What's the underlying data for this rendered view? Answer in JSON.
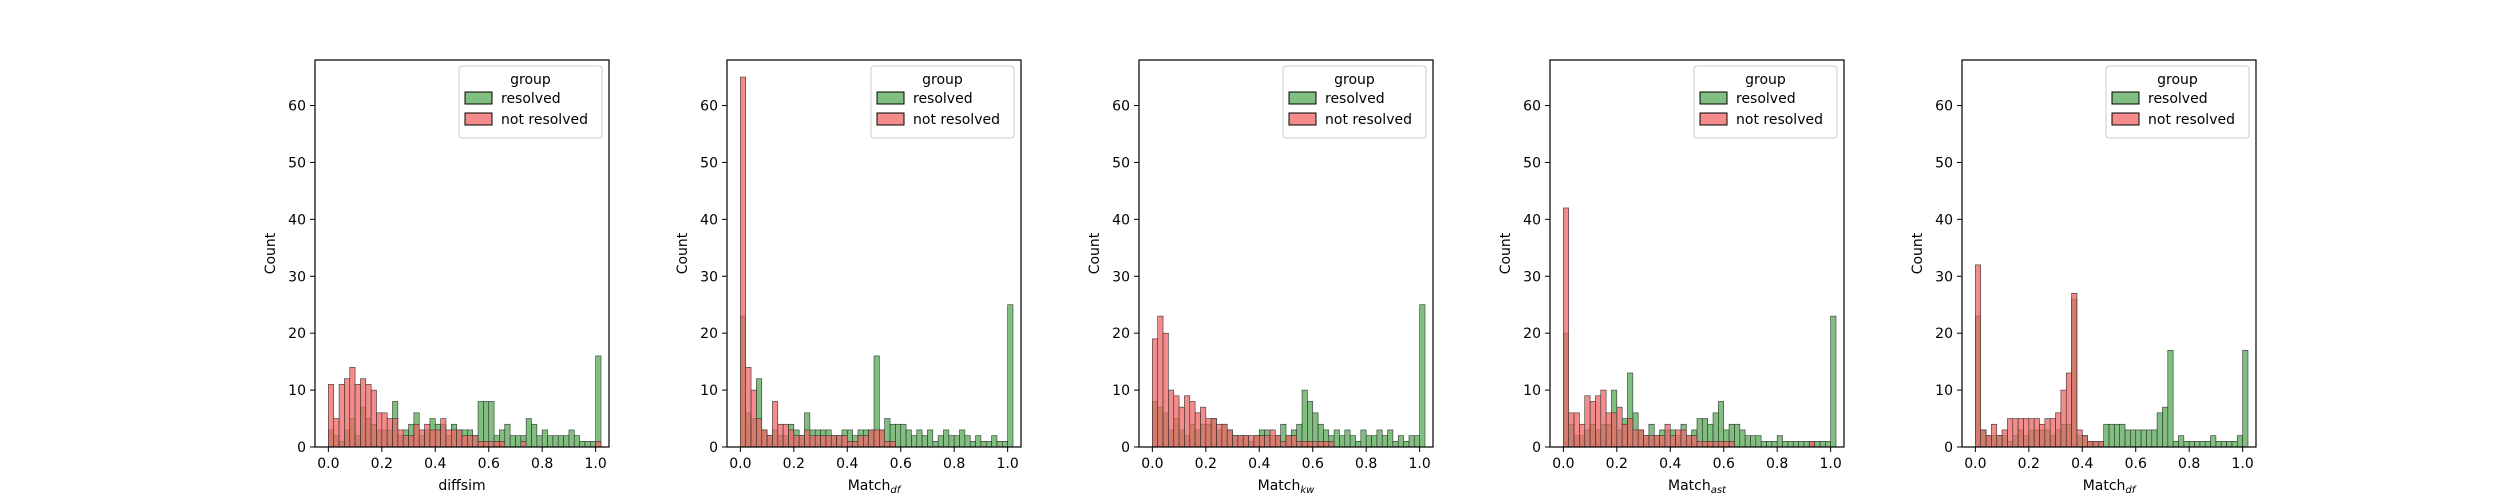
{
  "colors": {
    "resolved": "#55AA55",
    "not_resolved": "#F06666",
    "overlap": "#6B5A2C"
  },
  "chart_data": [
    {
      "type": "bar",
      "xlabel_main": "diffsim",
      "xlabel_sub": "",
      "ylabel": "Count",
      "xlim": [
        -0.05,
        1.05
      ],
      "ylim": [
        0,
        68
      ],
      "xticks": [
        "0.0",
        "0.2",
        "0.4",
        "0.6",
        "0.8",
        "1.0"
      ],
      "yticks": [
        "0",
        "10",
        "20",
        "30",
        "40",
        "50",
        "60"
      ],
      "legend": {
        "title": "group",
        "placement": "top-right",
        "entries": [
          "resolved",
          "not resolved"
        ]
      },
      "bin_start": 0.0,
      "bin_width": 0.02,
      "series": [
        {
          "name": "resolved",
          "values": [
            3,
            2,
            1,
            3,
            5,
            2,
            7,
            5,
            4,
            3,
            3,
            3,
            8,
            2,
            3,
            4,
            6,
            2,
            3,
            5,
            4,
            4,
            2,
            4,
            3,
            3,
            3,
            2,
            8,
            8,
            8,
            2,
            3,
            4,
            2,
            2,
            2,
            5,
            4,
            2,
            3,
            2,
            2,
            2,
            2,
            3,
            2,
            1,
            1,
            1,
            16
          ]
        },
        {
          "name": "not resolved",
          "values": [
            11,
            5,
            11,
            12,
            14,
            11,
            12,
            11,
            10,
            6,
            6,
            5,
            5,
            3,
            2,
            2,
            4,
            3,
            4,
            3,
            3,
            5,
            3,
            3,
            3,
            2,
            2,
            2,
            1,
            1,
            1,
            1,
            1,
            0,
            0,
            0,
            1,
            0,
            0,
            0,
            0,
            0,
            0,
            0,
            0,
            0,
            0,
            0,
            0,
            0,
            1
          ]
        }
      ]
    },
    {
      "type": "bar",
      "xlabel_main": "Match",
      "xlabel_sub": "df",
      "ylabel": "Count",
      "xlim": [
        -0.05,
        1.05
      ],
      "ylim": [
        0,
        68
      ],
      "xticks": [
        "0.0",
        "0.2",
        "0.4",
        "0.6",
        "0.8",
        "1.0"
      ],
      "yticks": [
        "0",
        "10",
        "20",
        "30",
        "40",
        "50",
        "60"
      ],
      "legend": {
        "title": "group",
        "placement": "top-right",
        "entries": [
          "resolved",
          "not resolved"
        ]
      },
      "bin_start": 0.0,
      "bin_width": 0.02,
      "series": [
        {
          "name": "resolved",
          "values": [
            23,
            6,
            5,
            12,
            3,
            2,
            3,
            2,
            2,
            4,
            3,
            2,
            6,
            3,
            3,
            3,
            3,
            2,
            2,
            3,
            3,
            2,
            3,
            3,
            3,
            16,
            3,
            5,
            4,
            4,
            4,
            3,
            2,
            3,
            2,
            3,
            1,
            2,
            3,
            2,
            2,
            3,
            2,
            1,
            2,
            1,
            1,
            2,
            1,
            1,
            25
          ]
        },
        {
          "name": "not resolved",
          "values": [
            65,
            14,
            10,
            5,
            3,
            2,
            8,
            4,
            4,
            3,
            2,
            2,
            3,
            2,
            2,
            2,
            2,
            2,
            2,
            2,
            1,
            1,
            2,
            2,
            3,
            3,
            3,
            1,
            1,
            0,
            0,
            0,
            0,
            0,
            0,
            0,
            0,
            0,
            0,
            0,
            0,
            0,
            0,
            0,
            0,
            0,
            0,
            0,
            0,
            0,
            0
          ]
        }
      ]
    },
    {
      "type": "bar",
      "xlabel_main": "Match",
      "xlabel_sub": "kw",
      "ylabel": "Count",
      "xlim": [
        -0.05,
        1.05
      ],
      "ylim": [
        0,
        68
      ],
      "xticks": [
        "0.0",
        "0.2",
        "0.4",
        "0.6",
        "0.8",
        "1.0"
      ],
      "yticks": [
        "0",
        "10",
        "20",
        "30",
        "40",
        "50",
        "60"
      ],
      "legend": {
        "title": "group",
        "placement": "top-right",
        "entries": [
          "resolved",
          "not resolved"
        ]
      },
      "bin_start": 0.0,
      "bin_width": 0.02,
      "series": [
        {
          "name": "resolved",
          "values": [
            8,
            7,
            6,
            3,
            5,
            3,
            2,
            4,
            3,
            4,
            4,
            5,
            3,
            4,
            3,
            2,
            2,
            2,
            1,
            2,
            3,
            3,
            2,
            2,
            4,
            2,
            3,
            4,
            10,
            8,
            6,
            4,
            3,
            2,
            3,
            2,
            3,
            2,
            1,
            3,
            2,
            2,
            3,
            2,
            3,
            1,
            2,
            1,
            2,
            2,
            25
          ]
        },
        {
          "name": "not resolved",
          "values": [
            19,
            23,
            20,
            10,
            9,
            7,
            9,
            8,
            6,
            7,
            5,
            5,
            4,
            4,
            3,
            2,
            2,
            2,
            2,
            2,
            2,
            2,
            3,
            2,
            1,
            2,
            2,
            1,
            1,
            1,
            1,
            1,
            1,
            1,
            0,
            0,
            0,
            0,
            0,
            0,
            0,
            0,
            0,
            0,
            0,
            0,
            0,
            0,
            0,
            0,
            0
          ]
        }
      ]
    },
    {
      "type": "bar",
      "xlabel_main": "Match",
      "xlabel_sub": "ast",
      "ylabel": "Count",
      "xlim": [
        -0.05,
        1.05
      ],
      "ylim": [
        0,
        68
      ],
      "xticks": [
        "0.0",
        "0.2",
        "0.4",
        "0.6",
        "0.8",
        "1.0"
      ],
      "yticks": [
        "0",
        "10",
        "20",
        "30",
        "40",
        "50",
        "60"
      ],
      "legend": {
        "title": "group",
        "placement": "top-right",
        "entries": [
          "resolved",
          "not resolved"
        ]
      },
      "bin_start": 0.0,
      "bin_width": 0.02,
      "series": [
        {
          "name": "resolved",
          "values": [
            20,
            4,
            2,
            2,
            3,
            4,
            3,
            4,
            4,
            10,
            3,
            5,
            13,
            6,
            3,
            2,
            4,
            2,
            3,
            3,
            3,
            2,
            4,
            2,
            3,
            5,
            5,
            4,
            6,
            8,
            3,
            4,
            4,
            3,
            2,
            2,
            2,
            1,
            1,
            1,
            2,
            1,
            1,
            1,
            1,
            1,
            1,
            1,
            1,
            1,
            23
          ]
        },
        {
          "name": "not resolved",
          "values": [
            42,
            6,
            6,
            4,
            9,
            8,
            9,
            10,
            6,
            6,
            7,
            4,
            5,
            3,
            3,
            2,
            2,
            2,
            2,
            4,
            2,
            3,
            3,
            2,
            2,
            1,
            1,
            1,
            1,
            1,
            1,
            1,
            0,
            0,
            0,
            0,
            0,
            0,
            0,
            0,
            0,
            0,
            0,
            0,
            0,
            0,
            1,
            0,
            0,
            0,
            0
          ]
        }
      ]
    },
    {
      "type": "bar",
      "xlabel_main": "Match",
      "xlabel_sub": "df",
      "ylabel": "Count",
      "xlim": [
        -0.05,
        1.05
      ],
      "ylim": [
        0,
        68
      ],
      "xticks": [
        "0.0",
        "0.2",
        "0.4",
        "0.6",
        "0.8",
        "1.0"
      ],
      "yticks": [
        "0",
        "10",
        "20",
        "30",
        "40",
        "50",
        "60"
      ],
      "legend": {
        "title": "group",
        "placement": "top-right",
        "entries": [
          "resolved",
          "not resolved"
        ]
      },
      "bin_start": 0.0,
      "bin_width": 0.02,
      "series": [
        {
          "name": "resolved",
          "values": [
            23,
            3,
            2,
            2,
            2,
            2,
            1,
            2,
            3,
            2,
            3,
            3,
            3,
            3,
            2,
            3,
            4,
            4,
            26,
            2,
            2,
            1,
            1,
            1,
            4,
            4,
            4,
            4,
            3,
            3,
            3,
            3,
            3,
            3,
            6,
            7,
            17,
            1,
            2,
            1,
            1,
            1,
            1,
            1,
            2,
            1,
            1,
            1,
            1,
            2,
            17
          ]
        },
        {
          "name": "not resolved",
          "values": [
            32,
            3,
            2,
            4,
            2,
            3,
            5,
            5,
            5,
            5,
            5,
            5,
            4,
            5,
            5,
            6,
            10,
            13,
            27,
            3,
            2,
            1,
            1,
            1,
            0,
            0,
            0,
            0,
            0,
            0,
            0,
            0,
            0,
            0,
            0,
            0,
            0,
            0,
            0,
            0,
            0,
            0,
            0,
            0,
            0,
            0,
            0,
            0,
            0,
            0,
            0
          ]
        }
      ]
    }
  ]
}
